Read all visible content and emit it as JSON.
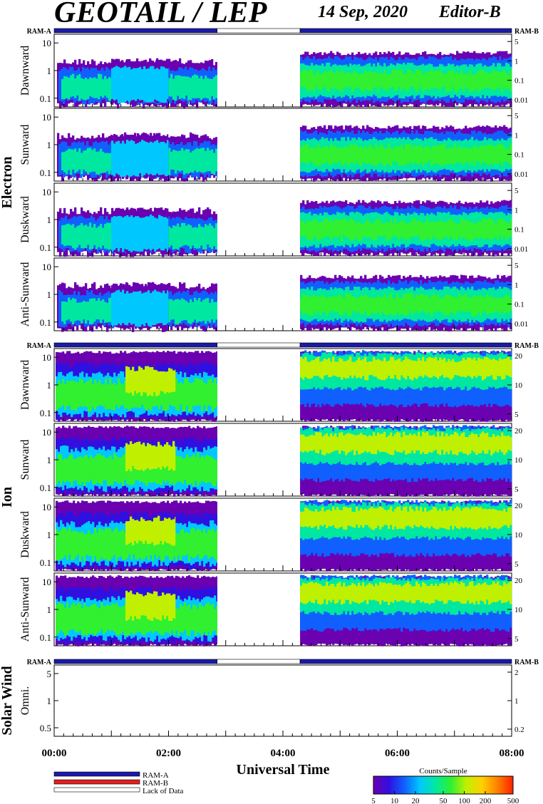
{
  "header": {
    "title": "GEOTAIL / LEP",
    "date": "14 Sep, 2020",
    "editor": "Editor-B"
  },
  "colors": {
    "ram_a": "#1a1aa8",
    "ram_b": "#e02020",
    "lack": "#ffffff",
    "colormap": [
      "#6a00b0",
      "#3010e0",
      "#1060ff",
      "#00c8ff",
      "#00e8a0",
      "#30f030",
      "#c0f000",
      "#ffd000",
      "#ff8000",
      "#ff2000"
    ]
  },
  "groups": {
    "electron": "Electron",
    "ion": "Ion",
    "solar_wind": "Solar Wind"
  },
  "ram_labels": {
    "a": "RAM-A",
    "b": "RAM-B"
  },
  "chart_data": {
    "type": "heatmap",
    "xlabel": "Universal Time",
    "x_ticks": [
      "00:00",
      "02:00",
      "04:00",
      "06:00",
      "08:00"
    ],
    "x_range_hours": [
      0,
      8
    ],
    "data_gaps_hours": [
      [
        2.85,
        4.3
      ]
    ],
    "ram_status": [
      {
        "mode": "RAM-A",
        "from": 0,
        "to": 2.85
      },
      {
        "mode": "Lack of Data",
        "from": 2.85,
        "to": 4.3
      },
      {
        "mode": "RAM-A",
        "from": 4.3,
        "to": 8
      }
    ],
    "panels": [
      {
        "group": "Electron",
        "label": "Dawnward",
        "left_ticks": [
          "10",
          "1",
          "0.1"
        ],
        "right_ticks": [
          "5",
          "1",
          "0.1",
          "0.01"
        ]
      },
      {
        "group": "Electron",
        "label": "Sunward",
        "left_ticks": [
          "10",
          "1",
          "0.1"
        ],
        "right_ticks": [
          "5",
          "1",
          "0.1",
          "0.01"
        ]
      },
      {
        "group": "Electron",
        "label": "Duskward",
        "left_ticks": [
          "10",
          "1",
          "0.1"
        ],
        "right_ticks": [
          "5",
          "1",
          "0.1",
          "0.01"
        ]
      },
      {
        "group": "Electron",
        "label": "Anti-Sunward",
        "left_ticks": [
          "10",
          "1",
          "0.1"
        ],
        "right_ticks": [
          "5",
          "1",
          "0.1",
          "0.01"
        ]
      },
      {
        "group": "Ion",
        "label": "Dawnward",
        "left_ticks": [
          "10",
          "1",
          "0.1"
        ],
        "right_ticks": [
          "20",
          "10",
          "5"
        ]
      },
      {
        "group": "Ion",
        "label": "Sunward",
        "left_ticks": [
          "10",
          "1",
          "0.1"
        ],
        "right_ticks": [
          "20",
          "10",
          "5"
        ]
      },
      {
        "group": "Ion",
        "label": "Duskward",
        "left_ticks": [
          "10",
          "1",
          "0.1"
        ],
        "right_ticks": [
          "20",
          "10",
          "5"
        ]
      },
      {
        "group": "Ion",
        "label": "Anti-Sunward",
        "left_ticks": [
          "10",
          "1",
          "0.1"
        ],
        "right_ticks": [
          "20",
          "10",
          "5"
        ]
      },
      {
        "group": "Solar Wind",
        "label": "Omni.",
        "left_ticks": [
          "5",
          "1",
          "0.5"
        ],
        "right_ticks": [
          "2",
          "1",
          "0.2"
        ]
      }
    ],
    "colorbar": {
      "label": "Counts/Sample",
      "ticks": [
        "5",
        "10",
        "20",
        "50",
        "100",
        "200",
        "500"
      ]
    },
    "legend": [
      {
        "label": "RAM-A",
        "color": "#1a1aa8"
      },
      {
        "label": "RAM-B",
        "color": "#e02020"
      },
      {
        "label": "Lack of Data",
        "color": "#ffffff"
      }
    ]
  }
}
